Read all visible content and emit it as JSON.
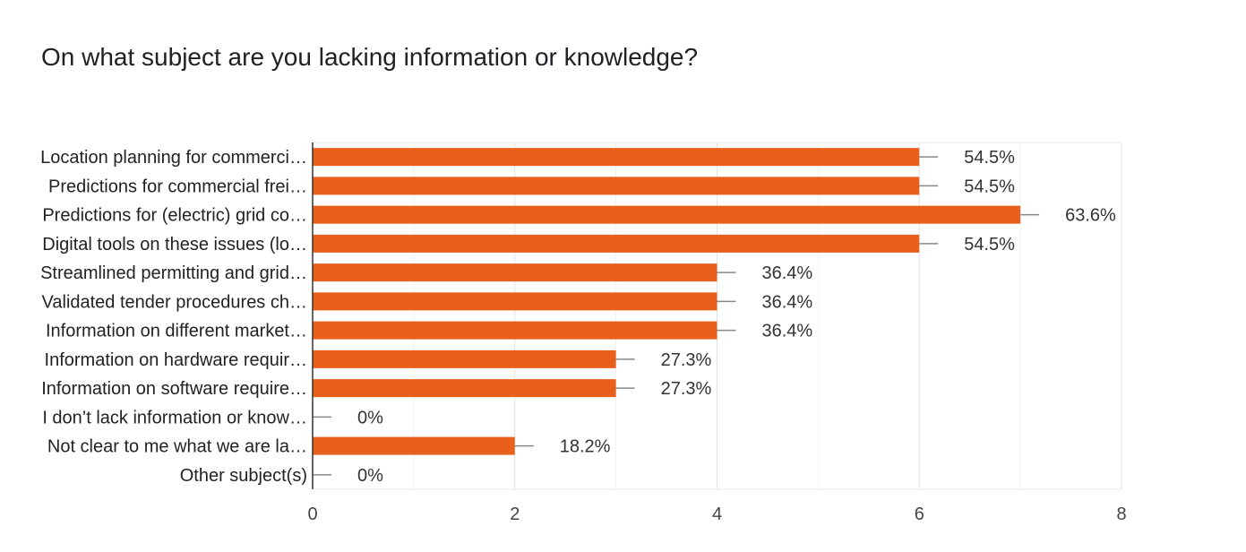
{
  "chart_data": {
    "type": "bar",
    "orientation": "horizontal",
    "title": "On what subject are you lacking information or knowledge?",
    "categories": [
      "Location planning for commerci…",
      "Predictions for commercial frei…",
      "Predictions for (electric) grid co…",
      "Digital tools on these issues (lo…",
      "Streamlined permitting and grid…",
      "Validated tender procedures ch…",
      "Information on different market…",
      "Information on hardware requir…",
      "Information on software require…",
      "I don’t lack information or know…",
      "Not clear to me what we are la…",
      "Other subject(s)"
    ],
    "values": [
      6,
      6,
      7,
      6,
      4,
      4,
      4,
      3,
      3,
      0,
      2,
      0
    ],
    "data_labels": [
      "54.5%",
      "54.5%",
      "63.6%",
      "54.5%",
      "36.4%",
      "36.4%",
      "36.4%",
      "27.3%",
      "27.3%",
      "0%",
      "18.2%",
      "0%"
    ],
    "xlim": [
      0,
      8
    ],
    "xticks": [
      "0",
      "2",
      "4",
      "6",
      "8"
    ],
    "grid": true,
    "bar_color": "#e8601c"
  }
}
